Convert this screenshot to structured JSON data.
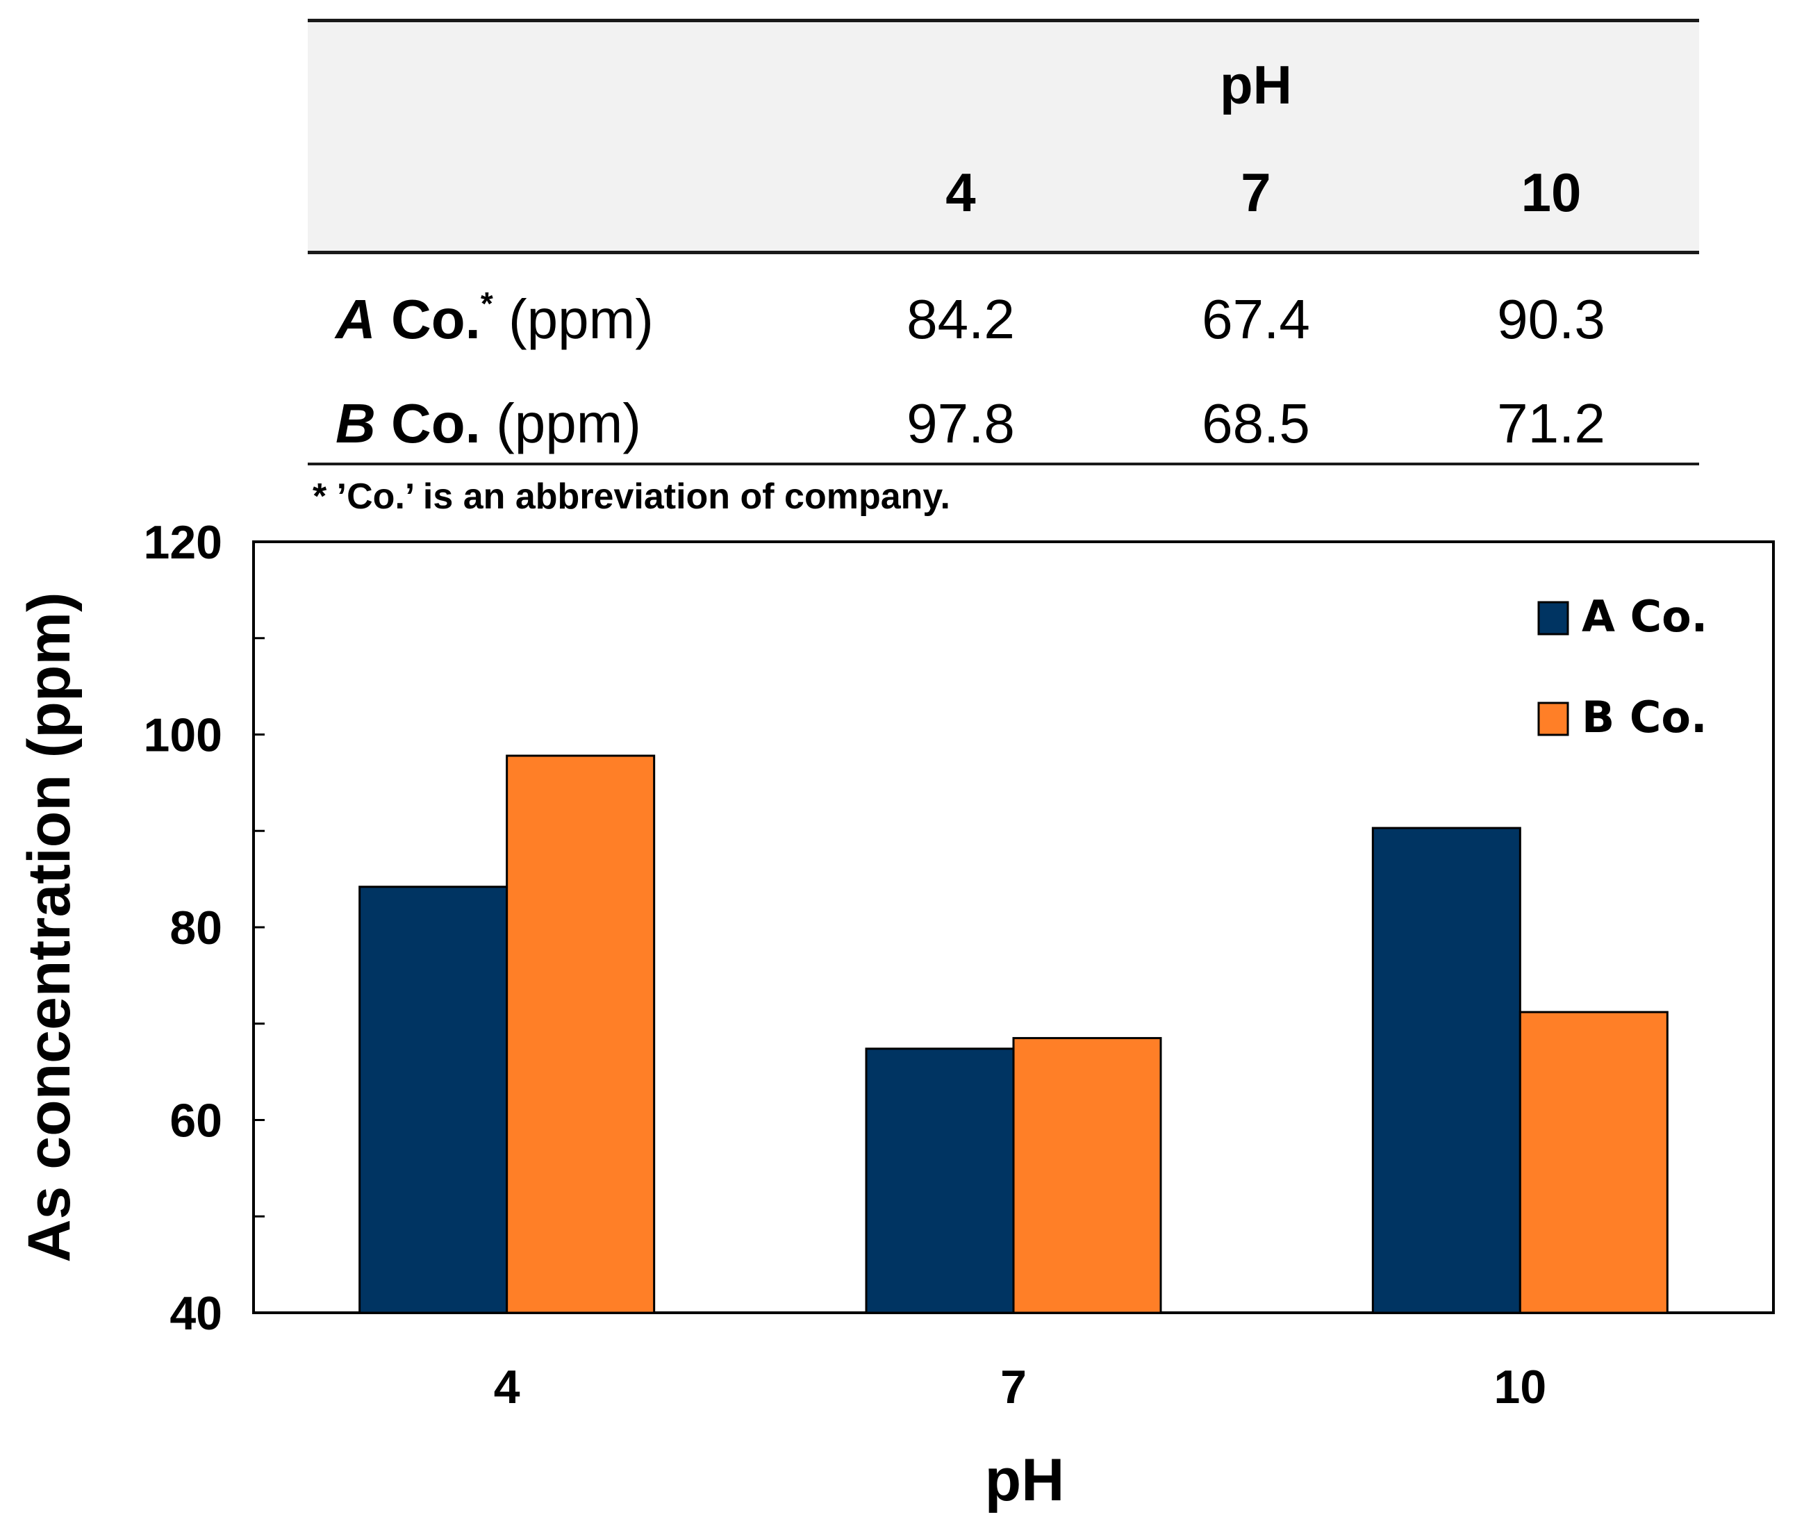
{
  "table": {
    "group_header": "pH",
    "columns": [
      "4",
      "7",
      "10"
    ],
    "rows": [
      {
        "company": "A",
        "label": "Co.",
        "footnote_mark": "*",
        "unit": "(ppm)",
        "values": [
          "84.2",
          "67.4",
          "90.3"
        ]
      },
      {
        "company": "B",
        "label": "Co.",
        "footnote_mark": "",
        "unit": "(ppm)",
        "values": [
          "97.8",
          "68.5",
          "71.2"
        ]
      }
    ],
    "footnote": "* ’Co.’ is an abbreviation of company."
  },
  "colors": {
    "series_a": "#003462",
    "series_b": "#ff7f27",
    "header_band": "#f2f2f2"
  },
  "chart_data": {
    "type": "bar",
    "categories": [
      "4",
      "7",
      "10"
    ],
    "series": [
      {
        "name": "A Co.",
        "values": [
          84.2,
          67.4,
          90.3
        ]
      },
      {
        "name": "B Co.",
        "values": [
          97.8,
          68.5,
          71.2
        ]
      }
    ],
    "title": "",
    "xlabel": "pH",
    "ylabel": "As concentration (ppm)",
    "ylim": [
      40,
      120
    ],
    "yticks": [
      40,
      60,
      80,
      100,
      120
    ],
    "minor_step": 10,
    "grid": false,
    "legend": "top-right"
  }
}
